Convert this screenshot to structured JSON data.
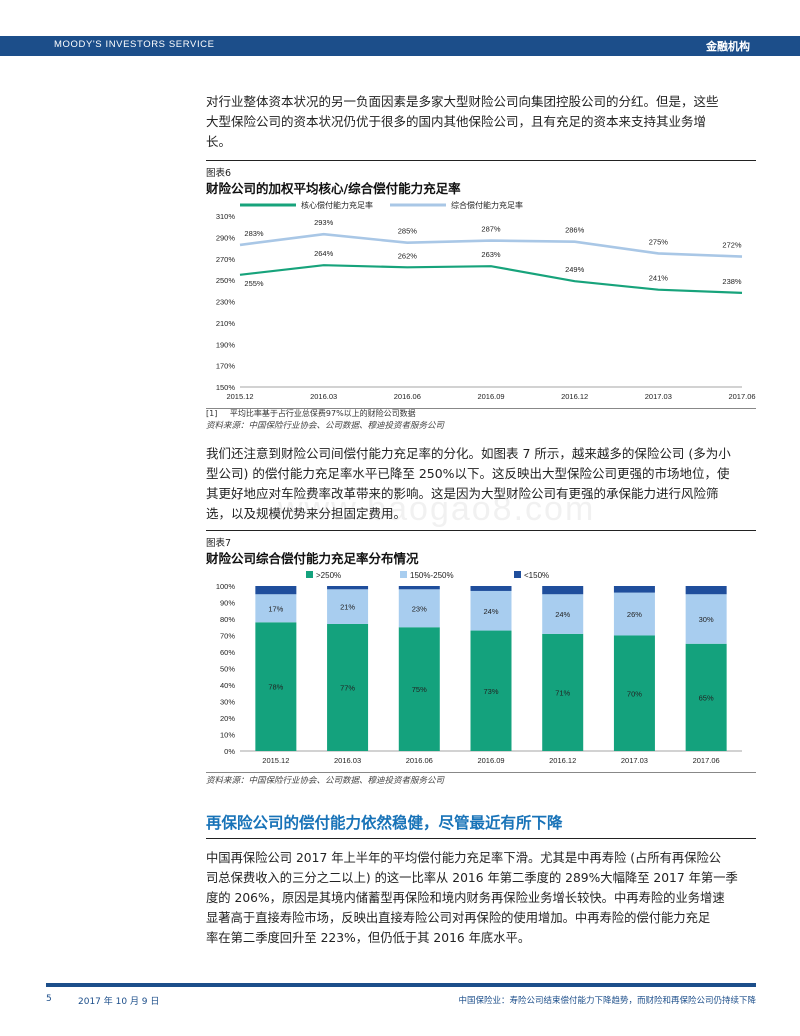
{
  "header": {
    "brand": "MOODY'S INVESTORS SERVICE",
    "section_label": "金融机构"
  },
  "paragraph1": [
    "对行业整体资本状况的另一负面因素是多家大型财险公司向集团控股公司的分红。但是，这些",
    "大型保险公司的资本状况仍优于很多的国内其他保险公司，且有充足的资本来支持其业务增",
    "长。"
  ],
  "figure6": {
    "label": "图表6",
    "title": "财险公司的加权平均核心/综合偿付能力充足率",
    "note_marker": "[1]",
    "note_text": "平均比率基于占行业总保费97%以上的财险公司数据",
    "source": "资料来源：中国保险行业协会、公司数据、穆迪投资者服务公司"
  },
  "paragraph2": [
    "我们还注意到财险公司间偿付能力充足率的分化。如图表 7 所示，越来越多的保险公司 (多为小",
    "型公司) 的偿付能力充足率水平已降至 250%以下。这反映出大型保险公司更强的市场地位，使",
    "其更好地应对车险费率改革带来的影响。这是因为大型财险公司有更强的承保能力进行风险筛",
    "选，以及规模优势来分担固定费用。"
  ],
  "watermark": "www.baogao8.com",
  "figure7": {
    "label": "图表7",
    "title": "财险公司综合偿付能力充足率分布情况",
    "source": "资料来源：中国保险行业协会、公司数据、穆迪投资者服务公司"
  },
  "section_heading": "再保险公司的偿付能力依然稳健，尽管最近有所下降",
  "paragraph3": [
    "中国再保险公司 2017 年上半年的平均偿付能力充足率下滑。尤其是中再寿险 (占所有再保险公",
    "司总保费收入的三分之二以上) 的这一比率从 2016 年第二季度的 289%大幅降至 2017 年第一季",
    "度的 206%，原因是其境内储蓄型再保险和境内财务再保险业务增长较快。中再寿险的业务增速",
    "显著高于直接寿险市场，反映出直接寿险公司对再保险的使用增加。中再寿险的偿付能力充足",
    "率在第二季度回升至 223%，但仍低于其 2016 年底水平。"
  ],
  "footer": {
    "page": "5",
    "date": "2017 年 10 月 9 日",
    "title": "中国保险业：寿险公司结束偿付能力下降趋势，而财险和再保险公司仍持续下降"
  },
  "colors": {
    "brand_blue": "#1c4e8a",
    "core_line": "#17a37b",
    "comprehensive_line": "#a9c7e6",
    "bar_gt250": "#14a27d",
    "bar_150_250": "#a8cdef",
    "bar_lt150": "#1f4e9c",
    "heading_blue": "#1873b8"
  },
  "chart_data": [
    {
      "type": "line",
      "title": "财险公司的加权平均核心/综合偿付能力充足率",
      "x": [
        "2015.12",
        "2016.03",
        "2016.06",
        "2016.09",
        "2016.12",
        "2017.03",
        "2017.06"
      ],
      "ylim": [
        150,
        310
      ],
      "yticks": [
        "150%",
        "170%",
        "190%",
        "210%",
        "230%",
        "250%",
        "270%",
        "290%",
        "310%"
      ],
      "series": [
        {
          "name": "核心偿付能力充足率",
          "values": [
            255,
            264,
            262,
            263,
            249,
            241,
            238
          ],
          "labels": [
            "255%",
            "264%",
            "262%",
            "263%",
            "249%",
            "241%",
            "238%"
          ]
        },
        {
          "name": "综合偿付能力充足率",
          "values": [
            283,
            293,
            285,
            287,
            286,
            275,
            272
          ],
          "labels": [
            "283%",
            "293%",
            "285%",
            "287%",
            "286%",
            "275%",
            "272%"
          ]
        }
      ],
      "legend": "top-left",
      "grid": false
    },
    {
      "type": "bar",
      "stacked": true,
      "title": "财险公司综合偿付能力充足率分布情况",
      "categories": [
        "2015.12",
        "2016.03",
        "2016.06",
        "2016.09",
        "2016.12",
        "2017.03",
        "2017.06"
      ],
      "ylim": [
        0,
        100
      ],
      "yticks": [
        "0%",
        "10%",
        "20%",
        "30%",
        "40%",
        "50%",
        "60%",
        "70%",
        "80%",
        "90%",
        "100%"
      ],
      "series": [
        {
          "name": ">250%",
          "values": [
            78,
            77,
            75,
            73,
            71,
            70,
            65
          ],
          "labels": [
            "78%",
            "77%",
            "75%",
            "73%",
            "71%",
            "70%",
            "65%"
          ]
        },
        {
          "name": "150%-250%",
          "values": [
            17,
            21,
            23,
            24,
            24,
            26,
            30
          ],
          "labels": [
            "17%",
            "21%",
            "23%",
            "24%",
            "24%",
            "26%",
            "30%"
          ]
        },
        {
          "name": "<150%",
          "values": [
            5,
            2,
            2,
            3,
            5,
            4,
            5
          ]
        }
      ],
      "legend": "top-center",
      "grid": false
    }
  ]
}
